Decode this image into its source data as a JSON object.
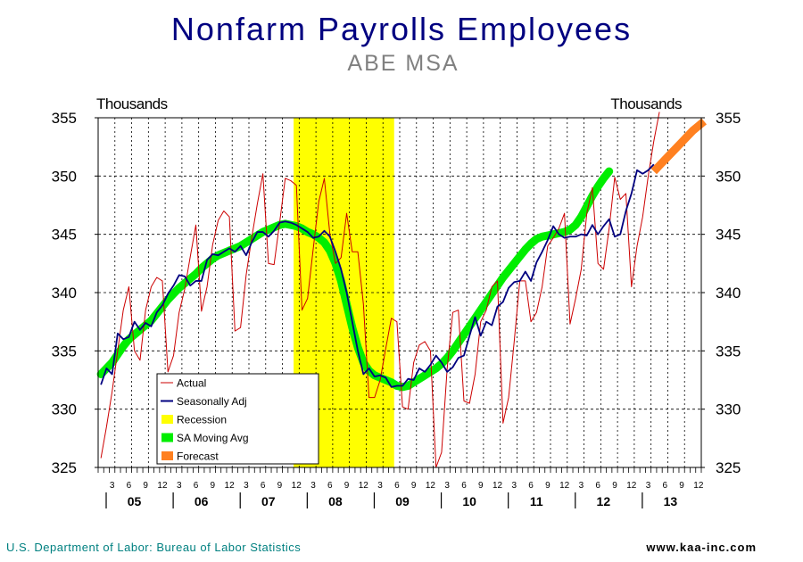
{
  "chart_data": {
    "type": "line",
    "title": "Nonfarm Payrolls Employees",
    "subtitle": "ABE MSA",
    "ylabel_left": "Thousands",
    "ylabel_right": "Thousands",
    "ylim": [
      325,
      355
    ],
    "yticks": [
      "325",
      "330",
      "335",
      "340",
      "345",
      "350",
      "355"
    ],
    "grid": true,
    "legend_position": "bottom-left",
    "start_month": "2005-01",
    "month_tick_labels": [
      "3",
      "6",
      "9",
      "12"
    ],
    "year_labels": [
      "05",
      "06",
      "07",
      "08",
      "09",
      "10",
      "11",
      "12",
      "13"
    ],
    "recession": {
      "start": "2007-12",
      "end": "2009-06"
    },
    "series": [
      {
        "name": "Actual",
        "color": "#cc0000",
        "values": [
          325.8,
          328.5,
          331.5,
          335.0,
          338.5,
          340.5,
          335.0,
          334.2,
          338.5,
          340.5,
          341.3,
          341.0,
          333.2,
          334.6,
          338.3,
          340.3,
          343.1,
          345.8,
          338.4,
          340.5,
          344.1,
          346.2,
          347.0,
          346.5,
          336.7,
          337.0,
          341.5,
          344.7,
          347.6,
          350.2,
          342.5,
          342.4,
          346.0,
          349.8,
          349.6,
          349.2,
          338.5,
          339.5,
          343.7,
          347.8,
          349.8,
          345.0,
          342.5,
          343.0,
          346.8,
          343.5,
          343.5,
          339.0,
          331.0,
          331.0,
          332.5,
          335.2,
          337.8,
          337.5,
          330.2,
          330.0,
          334.0,
          335.5,
          335.8,
          335.0,
          325.0,
          326.3,
          333.5,
          338.3,
          338.5,
          330.7,
          330.5,
          333.0,
          337.5,
          338.5,
          340.5,
          341.0,
          328.8,
          331.0,
          335.8,
          341.0,
          341.0,
          337.5,
          338.3,
          340.5,
          344.0,
          344.7,
          345.5,
          346.8,
          337.3,
          339.5,
          342.0,
          346.8,
          349.0,
          342.5,
          342.0,
          345.5,
          349.9,
          348.0,
          348.5,
          340.5,
          344.0,
          346.5,
          350.0,
          353.0,
          355.5
        ]
      },
      {
        "name": "Seasonally Adj",
        "color": "#000080",
        "values": [
          332.1,
          333.5,
          333.0,
          336.5,
          336.0,
          336.2,
          337.5,
          336.8,
          337.4,
          337.1,
          338.3,
          338.9,
          339.9,
          340.6,
          341.5,
          341.4,
          340.6,
          341.0,
          341.0,
          342.8,
          343.3,
          343.2,
          343.5,
          343.8,
          343.5,
          344.0,
          343.2,
          344.3,
          345.2,
          345.2,
          344.8,
          345.3,
          346.0,
          346.1,
          346.0,
          345.8,
          345.5,
          345.2,
          344.7,
          344.8,
          345.3,
          344.8,
          343.5,
          342.0,
          340.0,
          337.5,
          335.0,
          333.0,
          333.5,
          332.8,
          332.9,
          332.7,
          331.9,
          332.0,
          332.0,
          332.6,
          332.5,
          333.5,
          333.2,
          333.8,
          334.6,
          334.0,
          333.2,
          333.6,
          334.4,
          334.6,
          336.3,
          337.9,
          336.3,
          337.5,
          337.2,
          338.8,
          339.2,
          340.4,
          340.9,
          341.0,
          341.8,
          341.0,
          342.6,
          343.5,
          344.5,
          345.7,
          345.0,
          344.7,
          344.8,
          344.8,
          345.0,
          344.9,
          345.8,
          345.0,
          345.7,
          346.3,
          344.8,
          345.0,
          347.0,
          348.5,
          350.5,
          350.2,
          350.5,
          351.0
        ]
      },
      {
        "name": "SA Moving Avg",
        "color": "#00ee00",
        "values": [
          333.0,
          333.5,
          334.0,
          334.7,
          335.4,
          336.0,
          336.4,
          336.8,
          337.2,
          337.6,
          338.2,
          338.8,
          339.4,
          339.9,
          340.4,
          340.8,
          341.2,
          341.6,
          342.1,
          342.5,
          342.9,
          343.2,
          343.4,
          343.6,
          343.8,
          344.0,
          344.3,
          344.6,
          344.9,
          345.2,
          345.4,
          345.6,
          345.8,
          345.9,
          345.8,
          345.7,
          345.5,
          345.2,
          345.0,
          344.7,
          344.3,
          343.6,
          342.5,
          341.0,
          339.0,
          337.0,
          335.3,
          334.0,
          333.3,
          332.9,
          332.7,
          332.5,
          332.3,
          332.0,
          331.9,
          332.0,
          332.3,
          332.6,
          332.9,
          333.2,
          333.5,
          333.9,
          334.4,
          335.0,
          335.7,
          336.4,
          337.1,
          337.8,
          338.5,
          339.2,
          339.9,
          340.6,
          341.3,
          341.9,
          342.5,
          343.1,
          343.7,
          344.2,
          344.6,
          344.8,
          344.9,
          345.0,
          345.1,
          345.2,
          345.4,
          345.8,
          346.5,
          347.4,
          348.3,
          349.1,
          349.8,
          350.4
        ]
      },
      {
        "name": "Forecast",
        "color": "#ff8020",
        "start": "2013-04",
        "values": [
          350.4,
          350.9,
          351.4,
          351.9,
          352.4,
          352.9,
          353.4,
          353.9,
          354.3,
          354.7
        ]
      },
      {
        "name": "Recession",
        "color": "#ffff00"
      }
    ]
  },
  "footer": {
    "source": "U.S. Department of Labor: Bureau of Labor Statistics",
    "website": "www.kaa-inc.com"
  }
}
